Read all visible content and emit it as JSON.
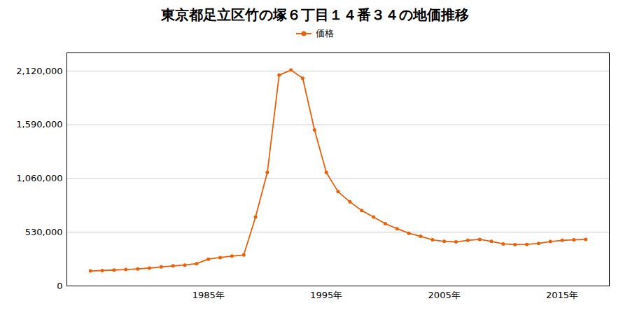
{
  "chart_data": {
    "type": "line",
    "title": "東京都足立区竹の塚６丁目１４番３４の地価推移",
    "x": [
      1975,
      1976,
      1977,
      1978,
      1979,
      1980,
      1981,
      1982,
      1983,
      1984,
      1985,
      1986,
      1987,
      1988,
      1989,
      1990,
      1991,
      1992,
      1993,
      1994,
      1995,
      1996,
      1997,
      1998,
      1999,
      2000,
      2001,
      2002,
      2003,
      2004,
      2005,
      2006,
      2007,
      2008,
      2009,
      2010,
      2011,
      2012,
      2013,
      2014,
      2015,
      2016,
      2017
    ],
    "series": [
      {
        "name": "価格",
        "color": "#E8600A",
        "marker": "circle",
        "values": [
          148000,
          152000,
          157000,
          162000,
          168000,
          176000,
          188000,
          198000,
          206000,
          220000,
          265000,
          280000,
          295000,
          305000,
          680000,
          1120000,
          2080000,
          2130000,
          2050000,
          1540000,
          1120000,
          930000,
          830000,
          745000,
          680000,
          615000,
          565000,
          520000,
          490000,
          455000,
          440000,
          435000,
          450000,
          460000,
          440000,
          415000,
          408000,
          410000,
          420000,
          438000,
          450000,
          455000,
          460000
        ]
      }
    ],
    "xlim": [
      1973,
      2019
    ],
    "xticks": [
      {
        "value": 1985,
        "label": "1985年"
      },
      {
        "value": 1995,
        "label": "1995年"
      },
      {
        "value": 2005,
        "label": "2005年"
      },
      {
        "value": 2015,
        "label": "2015年"
      }
    ],
    "ylim": [
      0,
      2300000
    ],
    "yticks": [
      0,
      {
        "value": 530000,
        "label": "530,000"
      },
      {
        "value": 1060000,
        "label": "1,060,000"
      },
      {
        "value": 1590000,
        "label": "1,590,000"
      },
      {
        "value": 2120000,
        "label": "2,120,000"
      }
    ],
    "grid": "y",
    "legend": "top"
  }
}
